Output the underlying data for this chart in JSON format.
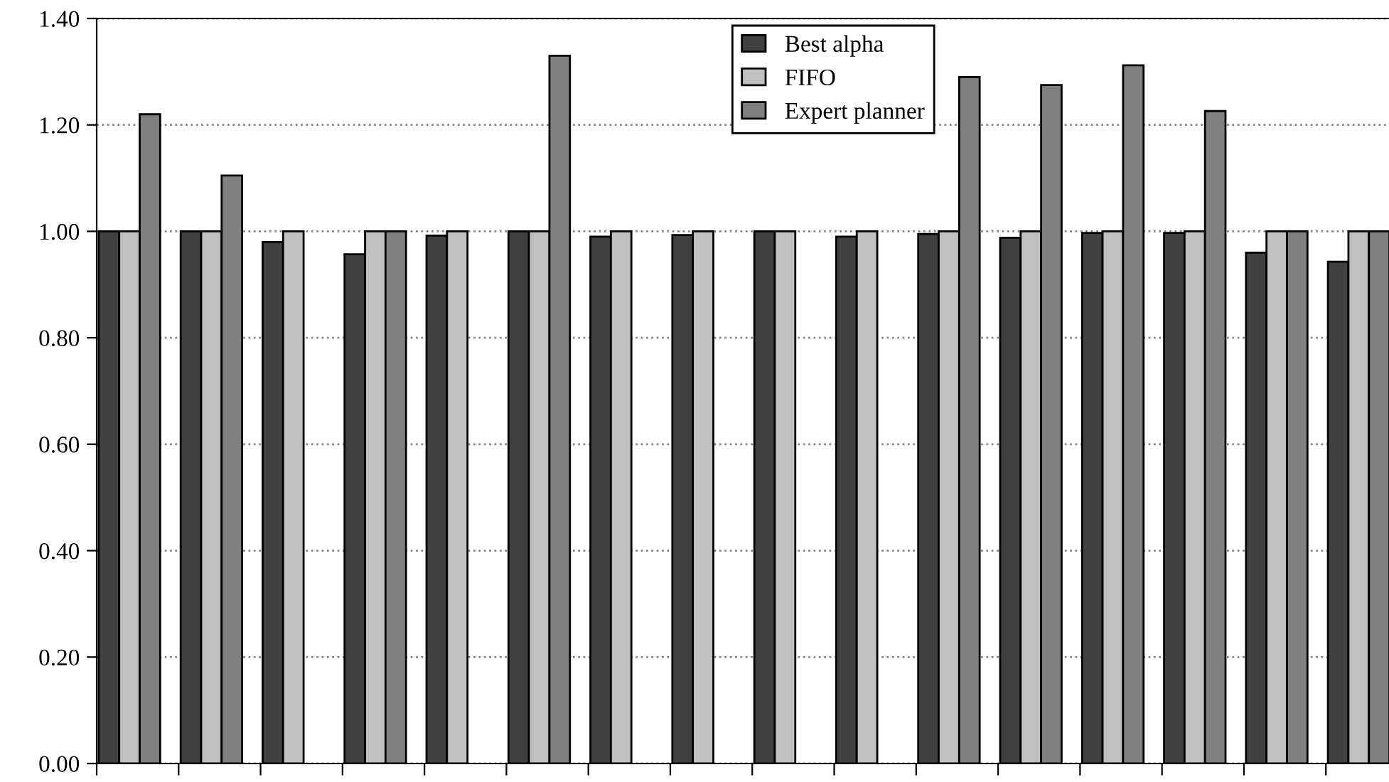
{
  "chart_data": {
    "type": "bar",
    "categories": [
      null,
      null,
      null,
      null,
      null,
      null,
      null,
      null,
      null,
      null,
      null,
      null,
      null,
      null,
      null,
      null
    ],
    "series": [
      {
        "name": "Best alpha",
        "color": "#404040",
        "values": [
          1.0,
          1.0,
          0.98,
          0.957,
          0.992,
          1.0,
          0.99,
          0.993,
          1.0,
          0.99,
          0.995,
          0.988,
          0.997,
          0.997,
          0.96,
          0.943
        ]
      },
      {
        "name": "FIFO",
        "color": "#c0c0c0",
        "values": [
          1.0,
          1.0,
          1.0,
          1.0,
          1.0,
          1.0,
          1.0,
          1.0,
          1.0,
          1.0,
          1.0,
          1.0,
          1.0,
          1.0,
          1.0,
          1.0
        ]
      },
      {
        "name": "Expert planner",
        "color": "#808080",
        "values": [
          1.22,
          1.105,
          null,
          1.0,
          null,
          1.33,
          null,
          null,
          null,
          null,
          1.29,
          1.275,
          1.312,
          1.226,
          1.0,
          1.0
        ]
      }
    ],
    "ylim": [
      0,
      1.4
    ],
    "yticks": [
      {
        "value": 0,
        "label": "0.00"
      },
      {
        "value": 0.2,
        "label": "0.20"
      },
      {
        "value": 0.4,
        "label": "0.40"
      },
      {
        "value": 0.6,
        "label": "0.60"
      },
      {
        "value": 0.8,
        "label": "0.80"
      },
      {
        "value": 1.0,
        "label": "1.00"
      },
      {
        "value": 1.2,
        "label": "1.20"
      },
      {
        "value": 1.4,
        "label": "1.40"
      }
    ],
    "grid": "y",
    "legend": "top center",
    "line_style": "dotted"
  }
}
